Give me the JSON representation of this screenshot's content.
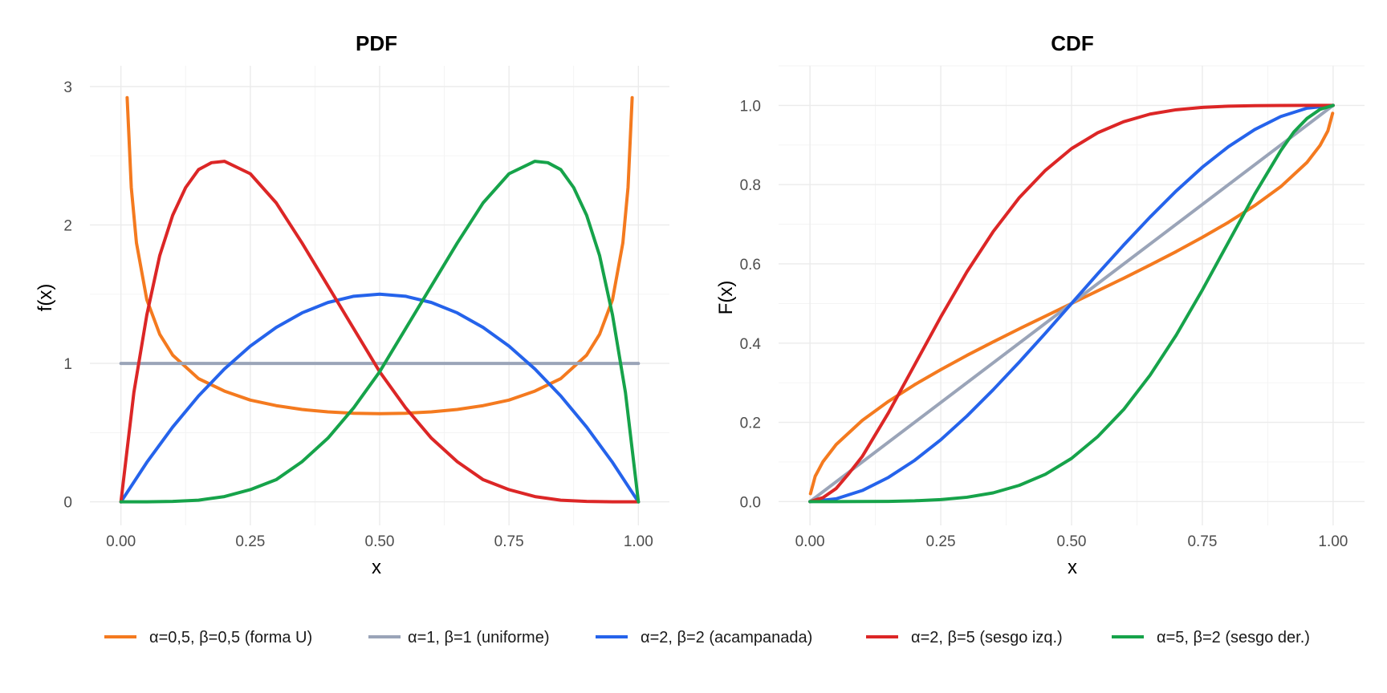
{
  "colors": {
    "a05b05": "#F47A1F",
    "a1b1": "#9AA4B8",
    "a2b2": "#2563EB",
    "a2b5": "#DC2626",
    "a5b2": "#16A34A"
  },
  "legend": {
    "items": [
      {
        "key": "a05b05",
        "label": "α=0,5, β=0,5 (forma U)"
      },
      {
        "key": "a1b1",
        "label": "α=1, β=1 (uniforme)"
      },
      {
        "key": "a2b2",
        "label": "α=2, β=2 (acampanada)"
      },
      {
        "key": "a2b5",
        "label": "α=2, β=5 (sesgo izq.)"
      },
      {
        "key": "a5b2",
        "label": "α=5, β=2 (sesgo der.)"
      }
    ]
  },
  "chart_data": [
    {
      "type": "line",
      "title": "PDF",
      "xlabel": "x",
      "ylabel": "f(x)",
      "xlim": [
        -0.06,
        1.06
      ],
      "ylim": [
        -0.17,
        3.15
      ],
      "xticks": [
        0,
        0.25,
        0.5,
        0.75,
        1
      ],
      "xtick_labels": [
        "0.00",
        "0.25",
        "0.50",
        "0.75",
        "1.00"
      ],
      "yticks": [
        0,
        1,
        2,
        3
      ],
      "ytick_labels": [
        "0",
        "1",
        "2",
        "3"
      ],
      "grid": true,
      "series": [
        {
          "name": "α=0,5, β=0,5 (forma U)",
          "color": "#F47A1F",
          "x": [
            0.012,
            0.02,
            0.03,
            0.05,
            0.075,
            0.1,
            0.15,
            0.2,
            0.25,
            0.3,
            0.35,
            0.4,
            0.45,
            0.5,
            0.55,
            0.6,
            0.65,
            0.7,
            0.75,
            0.8,
            0.85,
            0.9,
            0.925,
            0.95,
            0.97,
            0.98,
            0.988
          ],
          "y": [
            2.92,
            2.27,
            1.87,
            1.46,
            1.21,
            1.06,
            0.89,
            0.8,
            0.735,
            0.695,
            0.667,
            0.65,
            0.64,
            0.637,
            0.64,
            0.65,
            0.667,
            0.695,
            0.735,
            0.8,
            0.89,
            1.06,
            1.21,
            1.46,
            1.87,
            2.27,
            2.92
          ]
        },
        {
          "name": "α=1, β=1 (uniforme)",
          "color": "#9AA4B8",
          "x": [
            0,
            1
          ],
          "y": [
            1,
            1
          ]
        },
        {
          "name": "α=2, β=2 (acampanada)",
          "color": "#2563EB",
          "x": [
            0,
            0.05,
            0.1,
            0.15,
            0.2,
            0.25,
            0.3,
            0.35,
            0.4,
            0.45,
            0.5,
            0.55,
            0.6,
            0.65,
            0.7,
            0.75,
            0.8,
            0.85,
            0.9,
            0.95,
            1
          ],
          "y": [
            0,
            0.285,
            0.54,
            0.765,
            0.96,
            1.125,
            1.26,
            1.365,
            1.44,
            1.485,
            1.5,
            1.485,
            1.44,
            1.365,
            1.26,
            1.125,
            0.96,
            0.765,
            0.54,
            0.285,
            0
          ]
        },
        {
          "name": "α=2, β=5 (sesgo izq.)",
          "color": "#DC2626",
          "x": [
            0,
            0.025,
            0.05,
            0.075,
            0.1,
            0.125,
            0.15,
            0.175,
            0.2,
            0.25,
            0.3,
            0.35,
            0.4,
            0.45,
            0.5,
            0.55,
            0.6,
            0.65,
            0.7,
            0.75,
            0.8,
            0.85,
            0.9,
            0.95,
            1
          ],
          "y": [
            0,
            0.79,
            1.35,
            1.78,
            2.07,
            2.27,
            2.4,
            2.45,
            2.46,
            2.37,
            2.16,
            1.87,
            1.56,
            1.25,
            0.94,
            0.68,
            0.46,
            0.29,
            0.16,
            0.088,
            0.038,
            0.012,
            0.003,
            0.0002,
            0
          ]
        },
        {
          "name": "α=5, β=2 (sesgo der.)",
          "color": "#16A34A",
          "x": [
            0,
            0.05,
            0.1,
            0.15,
            0.2,
            0.25,
            0.3,
            0.35,
            0.4,
            0.45,
            0.5,
            0.55,
            0.6,
            0.65,
            0.7,
            0.75,
            0.8,
            0.825,
            0.85,
            0.875,
            0.9,
            0.925,
            0.95,
            0.975,
            1
          ],
          "y": [
            0,
            0.0002,
            0.003,
            0.012,
            0.038,
            0.088,
            0.16,
            0.29,
            0.46,
            0.68,
            0.94,
            1.25,
            1.56,
            1.87,
            2.16,
            2.37,
            2.46,
            2.45,
            2.4,
            2.27,
            2.07,
            1.78,
            1.35,
            0.79,
            0
          ]
        }
      ]
    },
    {
      "type": "line",
      "title": "CDF",
      "xlabel": "x",
      "ylabel": "F(x)",
      "xlim": [
        -0.06,
        1.06
      ],
      "ylim": [
        -0.06,
        1.1
      ],
      "xticks": [
        0,
        0.25,
        0.5,
        0.75,
        1
      ],
      "xtick_labels": [
        "0.00",
        "0.25",
        "0.50",
        "0.75",
        "1.00"
      ],
      "yticks": [
        0,
        0.2,
        0.4,
        0.6,
        0.8,
        1
      ],
      "ytick_labels": [
        "0.0",
        "0.2",
        "0.4",
        "0.6",
        "0.8",
        "1.0"
      ],
      "grid": true,
      "series": [
        {
          "name": "α=0,5, β=0,5 (forma U)",
          "color": "#F47A1F",
          "x": [
            0.001,
            0.01,
            0.025,
            0.05,
            0.1,
            0.15,
            0.2,
            0.25,
            0.3,
            0.35,
            0.4,
            0.45,
            0.5,
            0.55,
            0.6,
            0.65,
            0.7,
            0.75,
            0.8,
            0.85,
            0.9,
            0.95,
            0.975,
            0.99,
            0.999
          ],
          "y": [
            0.02,
            0.064,
            0.101,
            0.144,
            0.205,
            0.253,
            0.295,
            0.333,
            0.369,
            0.403,
            0.436,
            0.468,
            0.5,
            0.532,
            0.564,
            0.597,
            0.631,
            0.667,
            0.705,
            0.747,
            0.795,
            0.856,
            0.899,
            0.936,
            0.98
          ]
        },
        {
          "name": "α=1, β=1 (uniforme)",
          "color": "#9AA4B8",
          "x": [
            0,
            1
          ],
          "y": [
            0,
            1
          ]
        },
        {
          "name": "α=2, β=2 (acampanada)",
          "color": "#2563EB",
          "x": [
            0,
            0.05,
            0.1,
            0.15,
            0.2,
            0.25,
            0.3,
            0.35,
            0.4,
            0.45,
            0.5,
            0.55,
            0.6,
            0.65,
            0.7,
            0.75,
            0.8,
            0.85,
            0.9,
            0.95,
            1
          ],
          "y": [
            0,
            0.007,
            0.028,
            0.061,
            0.104,
            0.156,
            0.216,
            0.282,
            0.352,
            0.425,
            0.5,
            0.575,
            0.648,
            0.718,
            0.784,
            0.844,
            0.896,
            0.939,
            0.972,
            0.993,
            1
          ]
        },
        {
          "name": "α=2, β=5 (sesgo izq.)",
          "color": "#DC2626",
          "x": [
            0,
            0.025,
            0.05,
            0.075,
            0.1,
            0.15,
            0.2,
            0.25,
            0.3,
            0.35,
            0.4,
            0.45,
            0.5,
            0.55,
            0.6,
            0.65,
            0.7,
            0.75,
            0.8,
            0.85,
            0.9,
            0.95,
            1
          ],
          "y": [
            0,
            0.01,
            0.033,
            0.072,
            0.114,
            0.224,
            0.345,
            0.466,
            0.58,
            0.681,
            0.767,
            0.836,
            0.891,
            0.931,
            0.959,
            0.978,
            0.989,
            0.995,
            0.998,
            0.9994,
            0.9999,
            1,
            1
          ]
        },
        {
          "name": "α=5, β=2 (sesgo der.)",
          "color": "#16A34A",
          "x": [
            0,
            0.05,
            0.1,
            0.15,
            0.2,
            0.25,
            0.3,
            0.35,
            0.4,
            0.45,
            0.5,
            0.55,
            0.6,
            0.65,
            0.7,
            0.75,
            0.8,
            0.85,
            0.9,
            0.925,
            0.95,
            0.975,
            1
          ],
          "y": [
            0,
            0,
            0.0001,
            0.0006,
            0.002,
            0.005,
            0.011,
            0.022,
            0.041,
            0.069,
            0.109,
            0.164,
            0.233,
            0.319,
            0.42,
            0.534,
            0.655,
            0.776,
            0.886,
            0.933,
            0.967,
            0.99,
            1
          ]
        }
      ]
    }
  ]
}
